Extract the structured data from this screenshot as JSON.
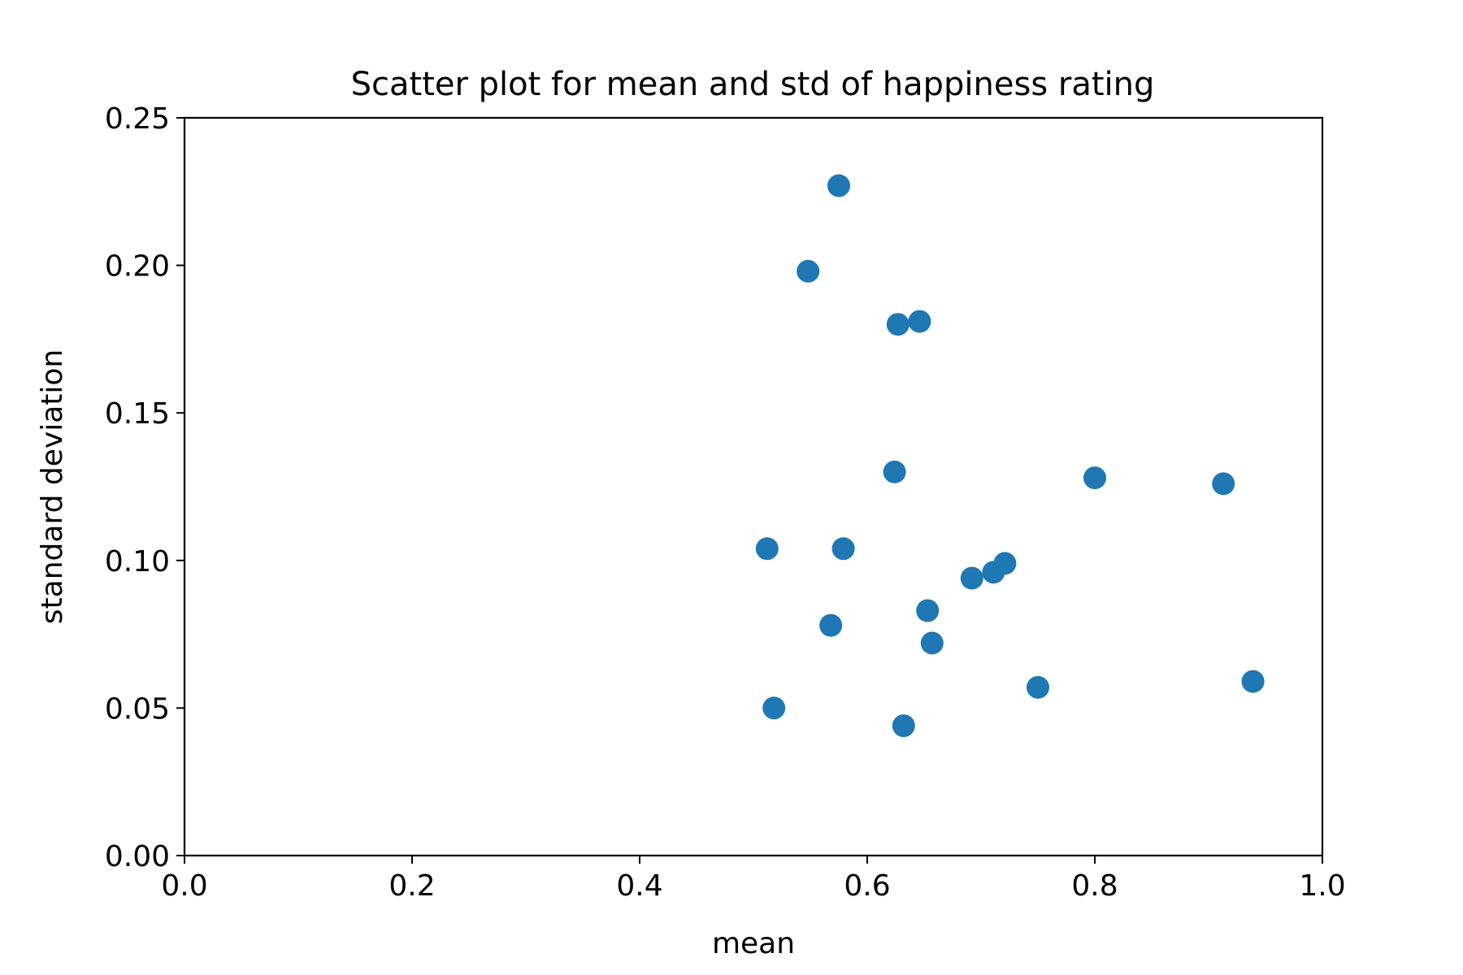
{
  "chart_data": {
    "type": "scatter",
    "title": "Scatter plot for mean and std of happiness rating",
    "xlabel": "mean",
    "ylabel": "standard deviation",
    "xlim": [
      0.0,
      1.0
    ],
    "ylim": [
      0.0,
      0.25
    ],
    "xticks": [
      0.0,
      0.2,
      0.4,
      0.6,
      0.8,
      1.0
    ],
    "xtick_labels": [
      "0.0",
      "0.2",
      "0.4",
      "0.6",
      "0.8",
      "1.0"
    ],
    "yticks": [
      0.0,
      0.05,
      0.1,
      0.15,
      0.2,
      0.25
    ],
    "ytick_labels": [
      "0.00",
      "0.05",
      "0.10",
      "0.15",
      "0.20",
      "0.25"
    ],
    "grid": false,
    "marker_color": "#1f77b4",
    "series": [
      {
        "points": [
          {
            "x": 0.575,
            "y": 0.227
          },
          {
            "x": 0.548,
            "y": 0.198
          },
          {
            "x": 0.627,
            "y": 0.18
          },
          {
            "x": 0.646,
            "y": 0.181
          },
          {
            "x": 0.624,
            "y": 0.13
          },
          {
            "x": 0.8,
            "y": 0.128
          },
          {
            "x": 0.913,
            "y": 0.126
          },
          {
            "x": 0.512,
            "y": 0.104
          },
          {
            "x": 0.579,
            "y": 0.104
          },
          {
            "x": 0.692,
            "y": 0.094
          },
          {
            "x": 0.711,
            "y": 0.096
          },
          {
            "x": 0.721,
            "y": 0.099
          },
          {
            "x": 0.653,
            "y": 0.083
          },
          {
            "x": 0.568,
            "y": 0.078
          },
          {
            "x": 0.657,
            "y": 0.072
          },
          {
            "x": 0.75,
            "y": 0.057
          },
          {
            "x": 0.939,
            "y": 0.059
          },
          {
            "x": 0.518,
            "y": 0.05
          },
          {
            "x": 0.632,
            "y": 0.044
          }
        ]
      }
    ]
  }
}
